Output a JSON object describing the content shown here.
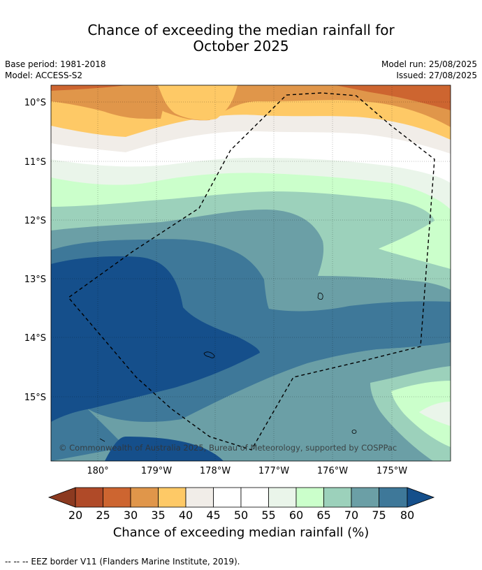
{
  "title": {
    "line1": "Chance of exceeding the median rainfall for",
    "line2": "October 2025"
  },
  "meta": {
    "base_period": "Base period: 1981-2018",
    "model": "Model: ACCESS-S2",
    "model_run": "Model run: 25/08/2025",
    "issued": "Issued: 27/08/2025"
  },
  "map": {
    "lon_labels": [
      "180°",
      "179°W",
      "178°W",
      "177°W",
      "176°W",
      "175°W"
    ],
    "lat_labels": [
      "10°S",
      "11°S",
      "12°S",
      "13°S",
      "14°S",
      "15°S"
    ],
    "copyright": "© Commonwealth of Australia 2025, Bureau of Meteorology, supported by COSPPac",
    "colors": {
      "lt20": "#8c3a20",
      "c20_25": "#b04a28",
      "c25_30": "#cd6530",
      "c30_35": "#e0964a",
      "c35_40": "#fec966",
      "c40_45": "#f1ede8",
      "c45_55": "#ffffff",
      "c55_60": "#eaf5ea",
      "c60_65": "#cbffcb",
      "c65_70": "#9cd1bb",
      "c70_75": "#6b9fa6",
      "c75_80": "#3e7899",
      "gt80": "#154f8b"
    }
  },
  "colorbar": {
    "ticks": [
      "20",
      "25",
      "30",
      "35",
      "40",
      "45",
      "50",
      "55",
      "60",
      "65",
      "70",
      "75",
      "80"
    ],
    "label": "Chance of exceeding median rainfall (%)"
  },
  "footnote": "--  --  -- EEZ border V11 (Flanders Marine Institute, 2019)."
}
